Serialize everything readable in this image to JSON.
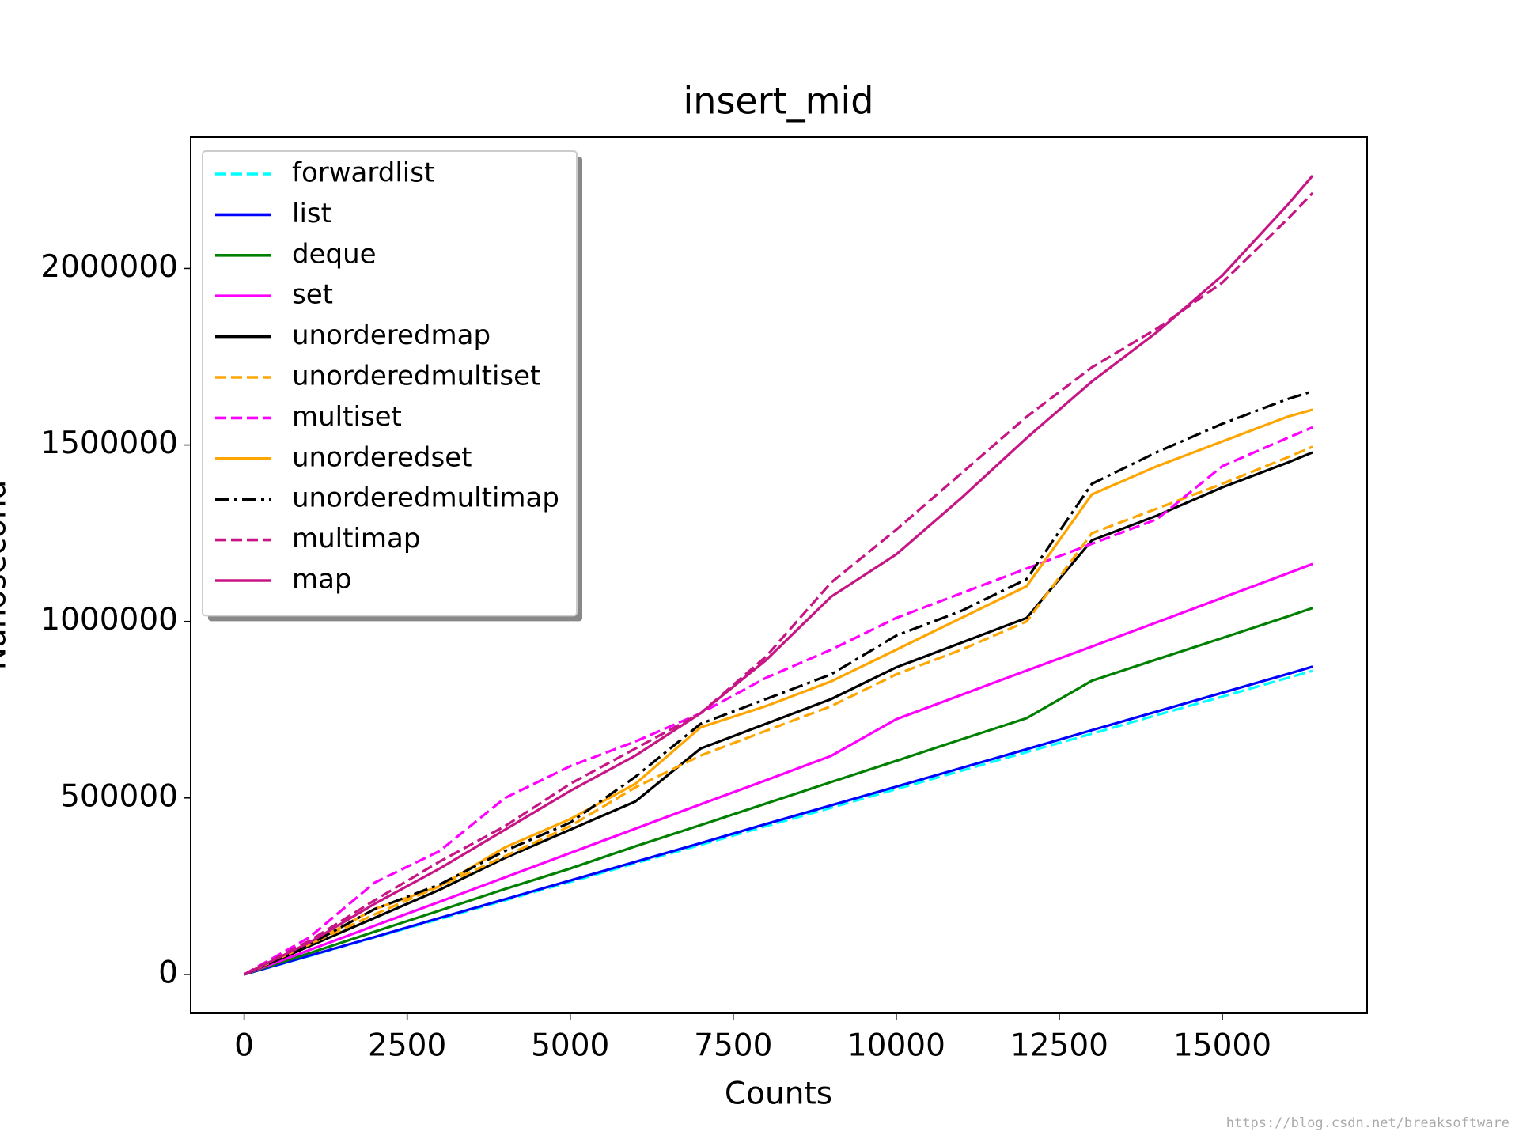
{
  "chart_data": {
    "type": "line",
    "title": "insert_mid",
    "xlabel": "Counts",
    "ylabel": "Nanosecond",
    "watermark": "https://blog.csdn.net/breaksoftware",
    "x": [
      0,
      1000,
      2000,
      3000,
      4000,
      5000,
      6000,
      7000,
      8000,
      9000,
      10000,
      11000,
      12000,
      13000,
      14000,
      15000,
      16000,
      16384
    ],
    "series": [
      {
        "name": "forwardlist",
        "color": "#00ffff",
        "linestyle": "dashed",
        "values": [
          0,
          52000,
          105000,
          157000,
          210000,
          262000,
          315000,
          367000,
          420000,
          472000,
          525000,
          577000,
          630000,
          682000,
          735000,
          787000,
          840000,
          860000
        ]
      },
      {
        "name": "list",
        "color": "#0000ff",
        "linestyle": "solid",
        "values": [
          0,
          53000,
          106000,
          160000,
          213000,
          266000,
          319000,
          372000,
          426000,
          479000,
          532000,
          585000,
          638000,
          692000,
          745000,
          798000,
          851000,
          872000
        ]
      },
      {
        "name": "deque",
        "color": "#008000",
        "linestyle": "solid",
        "values": [
          0,
          60000,
          121000,
          181000,
          242000,
          300000,
          363000,
          423000,
          484000,
          545000,
          605000,
          666000,
          726000,
          832000,
          893000,
          953000,
          1014000,
          1038000
        ]
      },
      {
        "name": "set",
        "color": "#ff00ff",
        "linestyle": "solid",
        "values": [
          0,
          69000,
          138000,
          206000,
          275000,
          344000,
          413000,
          482000,
          550000,
          619000,
          723000,
          792000,
          861000,
          929000,
          998000,
          1067000,
          1136000,
          1163000
        ]
      },
      {
        "name": "unorderedmap",
        "color": "#000000",
        "linestyle": "solid",
        "values": [
          0,
          80000,
          160000,
          240000,
          330000,
          410000,
          490000,
          640000,
          710000,
          780000,
          870000,
          940000,
          1010000,
          1230000,
          1300000,
          1380000,
          1450000,
          1479000
        ]
      },
      {
        "name": "unorderedmultiset",
        "color": "#ffa500",
        "linestyle": "dashed",
        "values": [
          0,
          85000,
          170000,
          250000,
          335000,
          420000,
          530000,
          620000,
          690000,
          760000,
          850000,
          920000,
          1000000,
          1250000,
          1320000,
          1390000,
          1465000,
          1495000
        ]
      },
      {
        "name": "multiset",
        "color": "#ff00ff",
        "linestyle": "dashed",
        "values": [
          0,
          105000,
          260000,
          350000,
          500000,
          590000,
          660000,
          740000,
          840000,
          920000,
          1010000,
          1080000,
          1150000,
          1220000,
          1290000,
          1440000,
          1520000,
          1550000
        ]
      },
      {
        "name": "unorderedset",
        "color": "#ffa500",
        "linestyle": "solid",
        "values": [
          0,
          85000,
          185000,
          250000,
          360000,
          440000,
          540000,
          700000,
          760000,
          830000,
          920000,
          1010000,
          1100000,
          1360000,
          1440000,
          1510000,
          1580000,
          1600000
        ]
      },
      {
        "name": "unorderedmultimap",
        "color": "#000000",
        "linestyle": "dashdot",
        "values": [
          0,
          85000,
          185000,
          255000,
          350000,
          430000,
          560000,
          710000,
          780000,
          850000,
          960000,
          1030000,
          1120000,
          1390000,
          1480000,
          1560000,
          1630000,
          1652000
        ]
      },
      {
        "name": "multimap",
        "color": "#c71585",
        "linestyle": "dashed",
        "values": [
          0,
          95000,
          210000,
          320000,
          420000,
          540000,
          640000,
          740000,
          900000,
          1110000,
          1260000,
          1420000,
          1580000,
          1720000,
          1830000,
          1960000,
          2140000,
          2214000
        ]
      },
      {
        "name": "map",
        "color": "#c71585",
        "linestyle": "solid",
        "values": [
          0,
          90000,
          200000,
          300000,
          410000,
          520000,
          620000,
          740000,
          890000,
          1070000,
          1190000,
          1350000,
          1520000,
          1680000,
          1820000,
          1980000,
          2180000,
          2263000
        ]
      }
    ],
    "xlim": [
      -820,
      17220
    ],
    "ylim": [
      -110000,
      2373000
    ],
    "xticks": [
      0,
      2500,
      5000,
      7500,
      10000,
      12500,
      15000
    ],
    "yticks": [
      0,
      500000,
      1000000,
      1500000,
      2000000
    ],
    "grid": false,
    "legend": "upper left"
  }
}
